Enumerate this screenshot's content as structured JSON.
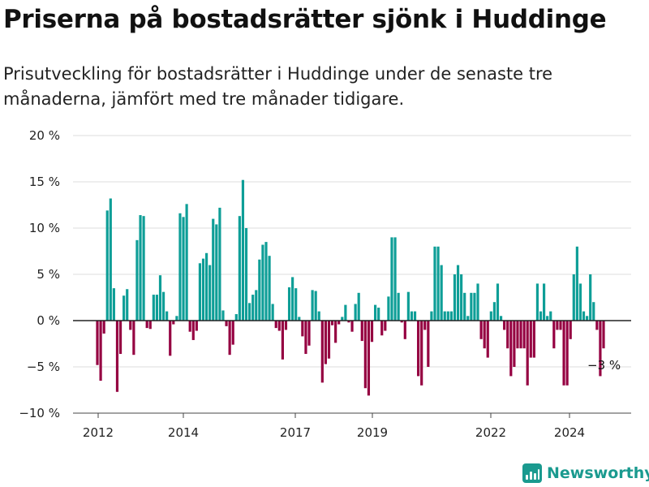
{
  "header": {
    "title": "Priserna på bostadsrätter sjönk i Huddinge",
    "subtitle": "Prisutveckling för bostadsrätter i Huddinge under de senaste tre månaderna, jämfört med tre månader tidigare."
  },
  "brand": {
    "name": "Newsworthy",
    "icon": "newsworthy-logo-icon",
    "color": "#1a9a8f"
  },
  "colors": {
    "positive": "#0e9e97",
    "negative": "#950041",
    "grid": "#dddddd",
    "zero_line": "#222222"
  },
  "chart_data": {
    "type": "bar",
    "title": "Priserna på bostadsrätter sjönk i Huddinge",
    "subtitle": "Prisutveckling för bostadsrätter i Huddinge under de senaste tre månaderna, jämfört med tre månader tidigare.",
    "xlabel": "",
    "ylabel": "",
    "ylim": [
      -10,
      20
    ],
    "yticks": [
      -10,
      -5,
      0,
      5,
      10,
      15,
      20
    ],
    "ytick_labels": [
      "−10 %",
      "−5 %",
      "0 %",
      "5 %",
      "10 %",
      "15 %",
      "20 %"
    ],
    "xticks": [
      "2012",
      "2014",
      "2017",
      "2019",
      "2022",
      "2024"
    ],
    "grid": true,
    "legend": "none",
    "annotation": {
      "text": "−3 %"
    },
    "series": [
      {
        "values": [
          -4.8,
          -6.5,
          -1.4,
          11.9,
          13.2,
          3.5,
          -7.7,
          -3.6,
          2.7,
          3.4,
          -1.0,
          -3.7,
          8.7,
          11.4,
          11.3,
          -0.8,
          -0.9,
          2.8,
          2.8,
          4.9,
          3.1,
          1.0,
          -3.8,
          -0.4,
          0.5,
          11.6,
          11.2,
          12.6,
          -1.2,
          -2.1,
          -1.1,
          6.2,
          6.7,
          7.3,
          6.0,
          11.0,
          10.4,
          12.2,
          1.1,
          -0.6,
          -3.7,
          -2.6,
          0.7,
          11.3,
          15.2,
          10.0,
          1.9,
          2.8,
          3.3,
          6.6,
          8.2,
          8.5,
          7.0,
          1.8,
          -0.8,
          -1.1,
          -4.2,
          -1.0,
          3.6,
          4.7,
          3.5,
          0.4,
          -1.7,
          -3.6,
          -2.7,
          3.3,
          3.2,
          1.0,
          -6.7,
          -4.7,
          -4.1,
          -0.5,
          -2.4,
          -0.4,
          0.4,
          1.7,
          -0.2,
          -1.2,
          1.8,
          3.0,
          -2.2,
          -7.3,
          -8.1,
          -2.3,
          1.7,
          1.4,
          -1.6,
          -1.1,
          2.6,
          9.0,
          9.0,
          3.0,
          -0.2,
          -2.0,
          3.1,
          1.0,
          1.0,
          -6.0,
          -7.0,
          -1.0,
          -5.0,
          1.0,
          8.0,
          8.0,
          6.0,
          1.0,
          1.0,
          1.0,
          5.0,
          6.0,
          5.0,
          3.0,
          0.5,
          3.0,
          3.0,
          4.0,
          -2.0,
          -3.0,
          -4.0,
          1.0,
          2.0,
          4.0,
          0.5,
          -1.0,
          -3.0,
          -6.0,
          -5.0,
          -3.0,
          -3.0,
          -3.0,
          -7.0,
          -4.0,
          -4.0,
          4.0,
          1.0,
          4.0,
          0.5,
          1.0,
          -3.0,
          -1.0,
          -1.0,
          -7.0,
          -7.0,
          -2.0,
          5.0,
          8.0,
          4.0,
          1.0,
          0.5,
          5.0,
          2.0,
          -1.0,
          -6.0,
          -3.0
        ]
      }
    ]
  }
}
